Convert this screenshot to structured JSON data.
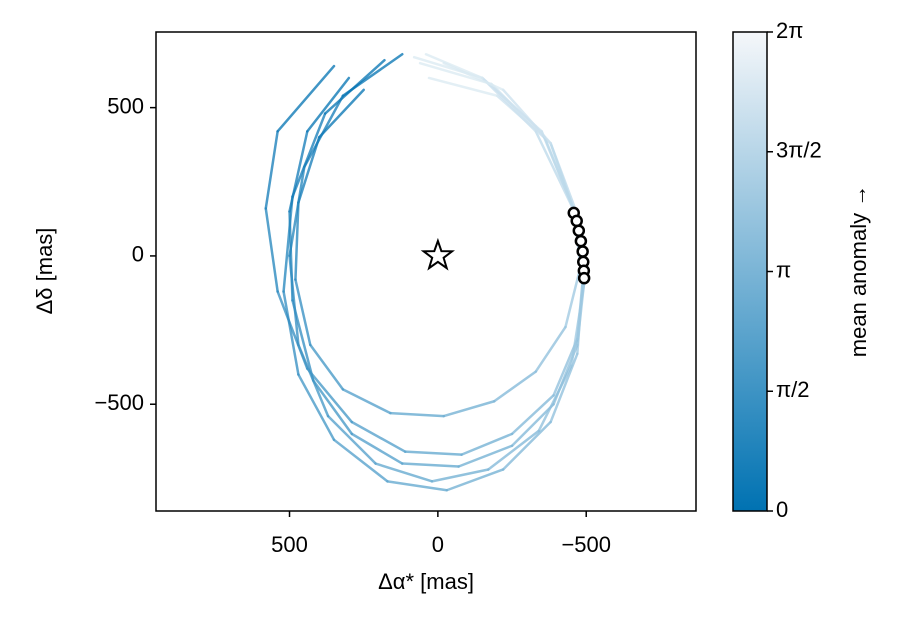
{
  "chart_data": {
    "type": "orbits",
    "xlabel": "Δα* [mas]",
    "ylabel": "Δδ [mas]",
    "xlim": [
      950,
      -870
    ],
    "ylim": [
      -860,
      755
    ],
    "xticks": [
      500,
      0,
      {
        "value": -500,
        "label": "−500"
      }
    ],
    "yticks": [
      {
        "value": -500,
        "label": "−500"
      },
      0,
      500
    ],
    "colorbar": {
      "label": "mean anomaly →",
      "clim": [
        0,
        6.2832
      ],
      "ticks": [
        0,
        {
          "value": 1.5708,
          "label": "π/2"
        },
        {
          "value": 3.1416,
          "label": "π"
        },
        {
          "value": 4.7124,
          "label": "3π/2"
        },
        {
          "value": 6.2832,
          "label": "2π"
        }
      ],
      "colormap": [
        "#0072b2",
        "#f5f7fa"
      ]
    },
    "orbits": [
      {
        "x": [
          180,
          380,
          490,
          520,
          470,
          350,
          170,
          -30,
          -220,
          -380,
          -470,
          -490,
          -460,
          -330,
          -150,
          40
        ],
        "y": [
          660,
          480,
          200,
          -120,
          -400,
          -620,
          -760,
          -790,
          -720,
          -560,
          -330,
          -60,
          150,
          420,
          600,
          680
        ],
        "mean_anomaly": [
          0,
          0.4,
          0.8,
          1.2,
          1.6,
          2.0,
          2.4,
          2.8,
          3.2,
          3.6,
          4.0,
          4.4,
          4.8,
          5.2,
          5.6,
          6.0
        ]
      },
      {
        "x": [
          250,
          400,
          470,
          480,
          430,
          320,
          160,
          -20,
          -190,
          -330,
          -430,
          -480,
          -460,
          -380,
          -200,
          30
        ],
        "y": [
          560,
          400,
          180,
          -80,
          -300,
          -450,
          -530,
          -540,
          -490,
          -390,
          -240,
          -40,
          150,
          380,
          540,
          600
        ],
        "mean_anomaly": [
          0,
          0.4,
          0.8,
          1.2,
          1.6,
          2.0,
          2.4,
          2.8,
          3.2,
          3.6,
          4.0,
          4.4,
          4.8,
          5.2,
          5.6,
          6.0
        ]
      },
      {
        "x": [
          300,
          440,
          500,
          490,
          420,
          290,
          120,
          -70,
          -250,
          -390,
          -470,
          -495,
          -465,
          -360,
          -180,
          60
        ],
        "y": [
          600,
          420,
          150,
          -150,
          -420,
          -600,
          -700,
          -710,
          -640,
          -500,
          -300,
          -70,
          140,
          400,
          580,
          650
        ],
        "mean_anomaly": [
          0,
          0.4,
          0.8,
          1.2,
          1.6,
          2.0,
          2.4,
          2.8,
          3.2,
          3.6,
          4.0,
          4.4,
          4.8,
          5.2,
          5.6,
          6.0
        ]
      },
      {
        "x": [
          350,
          540,
          580,
          540,
          440,
          290,
          110,
          -80,
          -250,
          -390,
          -470,
          -490,
          -460,
          -350,
          -150,
          80
        ],
        "y": [
          640,
          420,
          160,
          -120,
          -380,
          -560,
          -660,
          -670,
          -600,
          -470,
          -280,
          -60,
          150,
          420,
          600,
          670
        ],
        "mean_anomaly": [
          0,
          0.4,
          0.8,
          1.2,
          1.6,
          2.0,
          2.4,
          2.8,
          3.2,
          3.6,
          4.0,
          4.4,
          4.8,
          5.2,
          5.6,
          6.0
        ]
      },
      {
        "x": [
          120,
          320,
          450,
          500,
          470,
          370,
          210,
          20,
          -170,
          -340,
          -450,
          -495,
          -470,
          -380,
          -220,
          -20
        ],
        "y": [
          680,
          540,
          300,
          0,
          -300,
          -540,
          -700,
          -760,
          -720,
          -590,
          -370,
          -80,
          140,
          380,
          560,
          650
        ],
        "mean_anomaly": [
          0,
          0.4,
          0.8,
          1.2,
          1.6,
          2.0,
          2.4,
          2.8,
          3.2,
          3.6,
          4.0,
          4.4,
          4.8,
          5.2,
          5.6,
          6.0
        ]
      }
    ],
    "observations": {
      "x": [
        -458,
        -468,
        -475,
        -482,
        -488,
        -490,
        -492,
        -493
      ],
      "y": [
        145,
        118,
        85,
        50,
        15,
        -20,
        -50,
        -75
      ]
    },
    "star": {
      "x": 0,
      "y": 0
    }
  }
}
